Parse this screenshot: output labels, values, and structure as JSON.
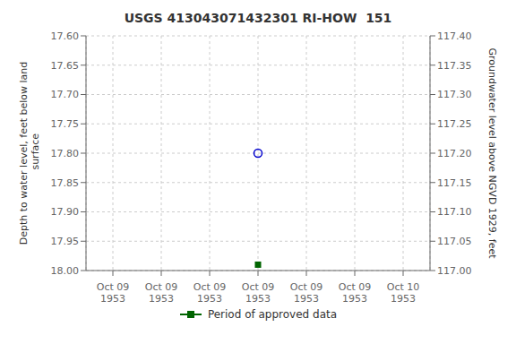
{
  "chart_data": {
    "type": "scatter",
    "title": "USGS 413043071432301 RI-HOW  151",
    "y_label": "Depth to water level, feet below land\n surface",
    "y2_label": "Groundwater level above NGVD 1929, feet",
    "categories": [
      "Oct 09\n1953",
      "Oct 09\n1953",
      "Oct 09\n1953",
      "Oct 09\n1953",
      "Oct 09\n1953",
      "Oct 09\n1953",
      "Oct 10\n1953"
    ],
    "series": [
      {
        "color": "#0000cc",
        "marker": "circle_open",
        "values": [
          null,
          null,
          null,
          17.8,
          null,
          null,
          null
        ]
      },
      {
        "name": "Period of approved data",
        "color": "#006400",
        "marker": "square",
        "values": [
          null,
          null,
          null,
          17.99,
          null,
          null,
          null
        ]
      }
    ],
    "ylim": [
      18.0,
      17.6
    ],
    "yticks": [
      {
        "value": 17.6,
        "label": "17.60"
      },
      17.65,
      {
        "value": 17.7,
        "label": "17.70"
      },
      17.75,
      {
        "value": 17.8,
        "label": "17.80"
      },
      17.85,
      {
        "value": 17.9,
        "label": "17.90"
      },
      17.95,
      {
        "value": 18.0,
        "label": "18.00"
      }
    ],
    "y2lim": [
      117.0,
      117.4
    ],
    "y2ticks": [
      {
        "value": 117.4,
        "label": "117.40"
      },
      117.35,
      {
        "value": 117.3,
        "label": "117.30"
      },
      117.25,
      {
        "value": 117.2,
        "label": "117.20"
      },
      117.15,
      {
        "value": 117.1,
        "label": "117.10"
      },
      117.05,
      {
        "value": 117.0,
        "label": "117.00"
      }
    ],
    "grid": true
  }
}
